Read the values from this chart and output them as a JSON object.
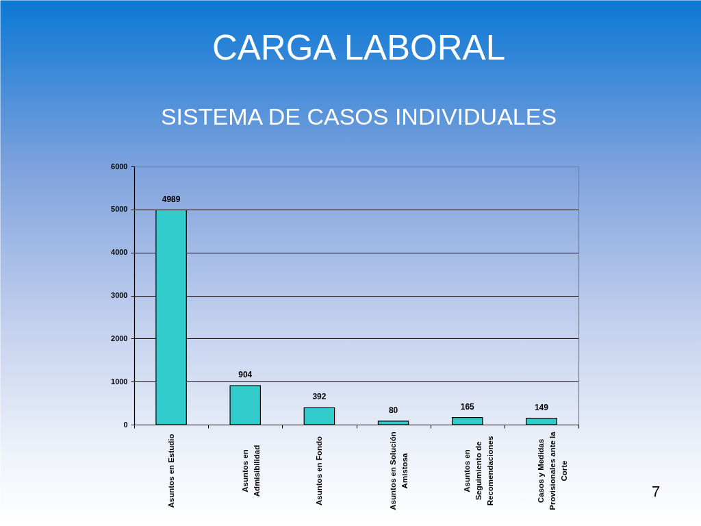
{
  "chart_data": {
    "type": "bar",
    "title": "CARGA LABORAL",
    "subtitle": "SISTEMA DE CASOS INDIVIDUALES",
    "categories": [
      "Asuntos en Estudio",
      "Asuntos en Admisibilidad",
      "Asuntos en Fondo",
      "Asuntos en Solución Amistosa",
      "Asuntos en Seguimiento de Recomendaciones",
      "Casos y Medidas Provisionales ante la Corte"
    ],
    "values": [
      4989,
      904,
      392,
      80,
      165,
      149
    ],
    "color": "#33cccc",
    "ylim": [
      0,
      6000
    ],
    "yticks": [
      0,
      1000,
      2000,
      3000,
      4000,
      5000,
      6000
    ],
    "grid": "y",
    "data_labels": true,
    "annotations": [
      "7"
    ]
  }
}
